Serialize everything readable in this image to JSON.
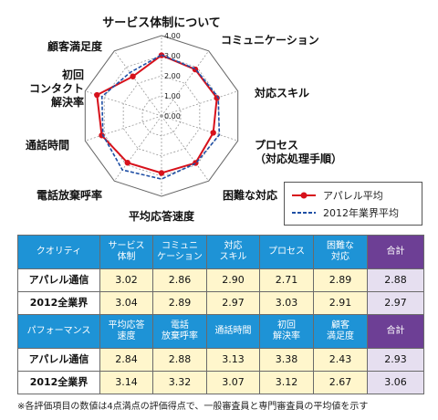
{
  "chart_data": {
    "type": "radar",
    "axes": [
      "サービス体制について",
      "コミュニケーション",
      "対応スキル",
      "プロセス\n（対応処理手順）",
      "困難な対応",
      "平均応答速度",
      "電話放棄呼率",
      "通話時間",
      "初回\nコンタクト\n解決率",
      "顧客満足度"
    ],
    "ticks": [
      "0.00",
      "1.00",
      "2.00",
      "3.00",
      "4.00"
    ],
    "rlim": [
      0,
      4
    ],
    "legend_position": "bottom-right",
    "series": [
      {
        "name": "アパレル平均",
        "color": "#d7111b",
        "style": "solid-marker",
        "values": [
          3.02,
          2.86,
          2.9,
          2.71,
          2.89,
          2.84,
          2.88,
          3.13,
          3.38,
          2.43
        ]
      },
      {
        "name": "2012年業界平均",
        "color": "#1f4fa5",
        "style": "dashed",
        "values": [
          3.04,
          2.89,
          2.97,
          3.03,
          2.91,
          3.14,
          3.32,
          3.07,
          3.12,
          2.67
        ]
      }
    ]
  },
  "table": {
    "quality_header": [
      "クオリティ",
      "サービス\n体制",
      "コミュニ\nケーション",
      "対応\nスキル",
      "プロセス",
      "困難な\n対応",
      "合計"
    ],
    "quality_rows": [
      {
        "label": "アパレル通信",
        "values": [
          "3.02",
          "2.86",
          "2.90",
          "2.71",
          "2.89"
        ],
        "total": "2.88"
      },
      {
        "label": "2012全業界",
        "values": [
          "3.04",
          "2.89",
          "2.97",
          "3.03",
          "2.91"
        ],
        "total": "2.97"
      }
    ],
    "performance_header": [
      "パフォーマンス",
      "平均応答\n速度",
      "電話\n放棄呼率",
      "通話時間",
      "初回\n解決率",
      "顧客\n満足度",
      "合計"
    ],
    "performance_rows": [
      {
        "label": "アパレル通信",
        "values": [
          "2.84",
          "2.88",
          "3.13",
          "3.38",
          "2.43"
        ],
        "total": "2.93"
      },
      {
        "label": "2012全業界",
        "values": [
          "3.14",
          "3.32",
          "3.07",
          "3.12",
          "2.67"
        ],
        "total": "3.06"
      }
    ]
  },
  "footnote": "※各評価項目の数値は4点満点の評価得点で、一般審査員と専門審査員の平均値を示す"
}
